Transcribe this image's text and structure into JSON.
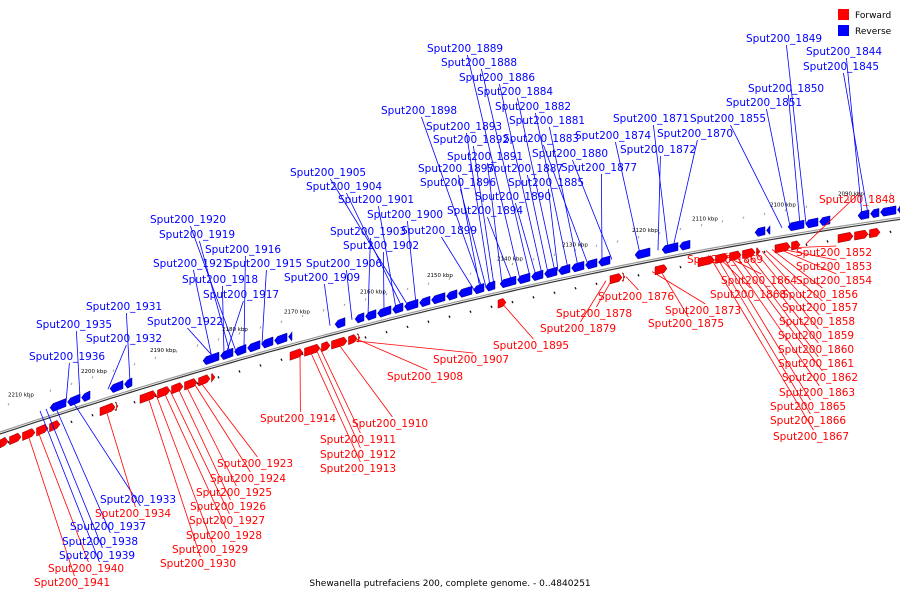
{
  "caption": "Shewanella putrefaciens 200, complete genome. - 0..4840251",
  "legend": [
    {
      "label": "Forward",
      "color": "#ff0000"
    },
    {
      "label": "Reverse",
      "color": "#0000ff"
    }
  ],
  "colors": {
    "forward": "#ff0000",
    "reverse": "#0000ff",
    "forward_dark": "#8b0000",
    "reverse_dark": "#00008b",
    "backbone": "#555555"
  },
  "ticks": [
    "2090 kbp",
    "2100 kbp",
    "2110 kbp",
    "2120 kbp",
    "2130 kbp",
    "2140 kbp",
    "2150 kbp",
    "2160 kbp",
    "2170 kbp",
    "2180 kbp",
    "2190 kbp",
    "2200 kbp",
    "2210 kbp"
  ],
  "reverse_genes": [
    "Sput200_1849",
    "Sput200_1844",
    "Sput200_1845",
    "Sput200_1850",
    "Sput200_1851",
    "Sput200_1855",
    "Sput200_1871",
    "Sput200_1870",
    "Sput200_1874",
    "Sput200_1872",
    "Sput200_1880",
    "Sput200_1877",
    "Sput200_1889",
    "Sput200_1888",
    "Sput200_1886",
    "Sput200_1884",
    "Sput200_1882",
    "Sput200_1881",
    "Sput200_1898",
    "Sput200_1893",
    "Sput200_1883",
    "Sput200_1892",
    "Sput200_1891",
    "Sput200_1897",
    "Sput200_1887",
    "Sput200_1885",
    "Sput200_1896",
    "Sput200_1890",
    "Sput200_1894",
    "Sput200_1899",
    "Sput200_1905",
    "Sput200_1904",
    "Sput200_1901",
    "Sput200_1900",
    "Sput200_1903",
    "Sput200_1902",
    "Sput200_1906",
    "Sput200_1909",
    "Sput200_1920",
    "Sput200_1919",
    "Sput200_1916",
    "Sput200_1921",
    "Sput200_1915",
    "Sput200_1918",
    "Sput200_1917",
    "Sput200_1922",
    "Sput200_1931",
    "Sput200_1935",
    "Sput200_1932",
    "Sput200_1936",
    "Sput200_1933",
    "Sput200_1937",
    "Sput200_1938",
    "Sput200_1939"
  ],
  "forward_genes": [
    "Sput200_1848",
    "Sput200_1852",
    "Sput200_1869",
    "Sput200_1853",
    "Sput200_1864",
    "Sput200_1854",
    "Sput200_1868",
    "Sput200_1856",
    "Sput200_1857",
    "Sput200_1858",
    "Sput200_1859",
    "Sput200_1860",
    "Sput200_1861",
    "Sput200_1862",
    "Sput200_1863",
    "Sput200_1865",
    "Sput200_1866",
    "Sput200_1867",
    "Sput200_1876",
    "Sput200_1873",
    "Sput200_1878",
    "Sput200_1875",
    "Sput200_1879",
    "Sput200_1895",
    "Sput200_1907",
    "Sput200_1908",
    "Sput200_1910",
    "Sput200_1914",
    "Sput200_1911",
    "Sput200_1912",
    "Sput200_1913",
    "Sput200_1923",
    "Sput200_1924",
    "Sput200_1925",
    "Sput200_1926",
    "Sput200_1927",
    "Sput200_1928",
    "Sput200_1929",
    "Sput200_1930",
    "Sput200_1934",
    "Sput200_1940",
    "Sput200_1941"
  ]
}
